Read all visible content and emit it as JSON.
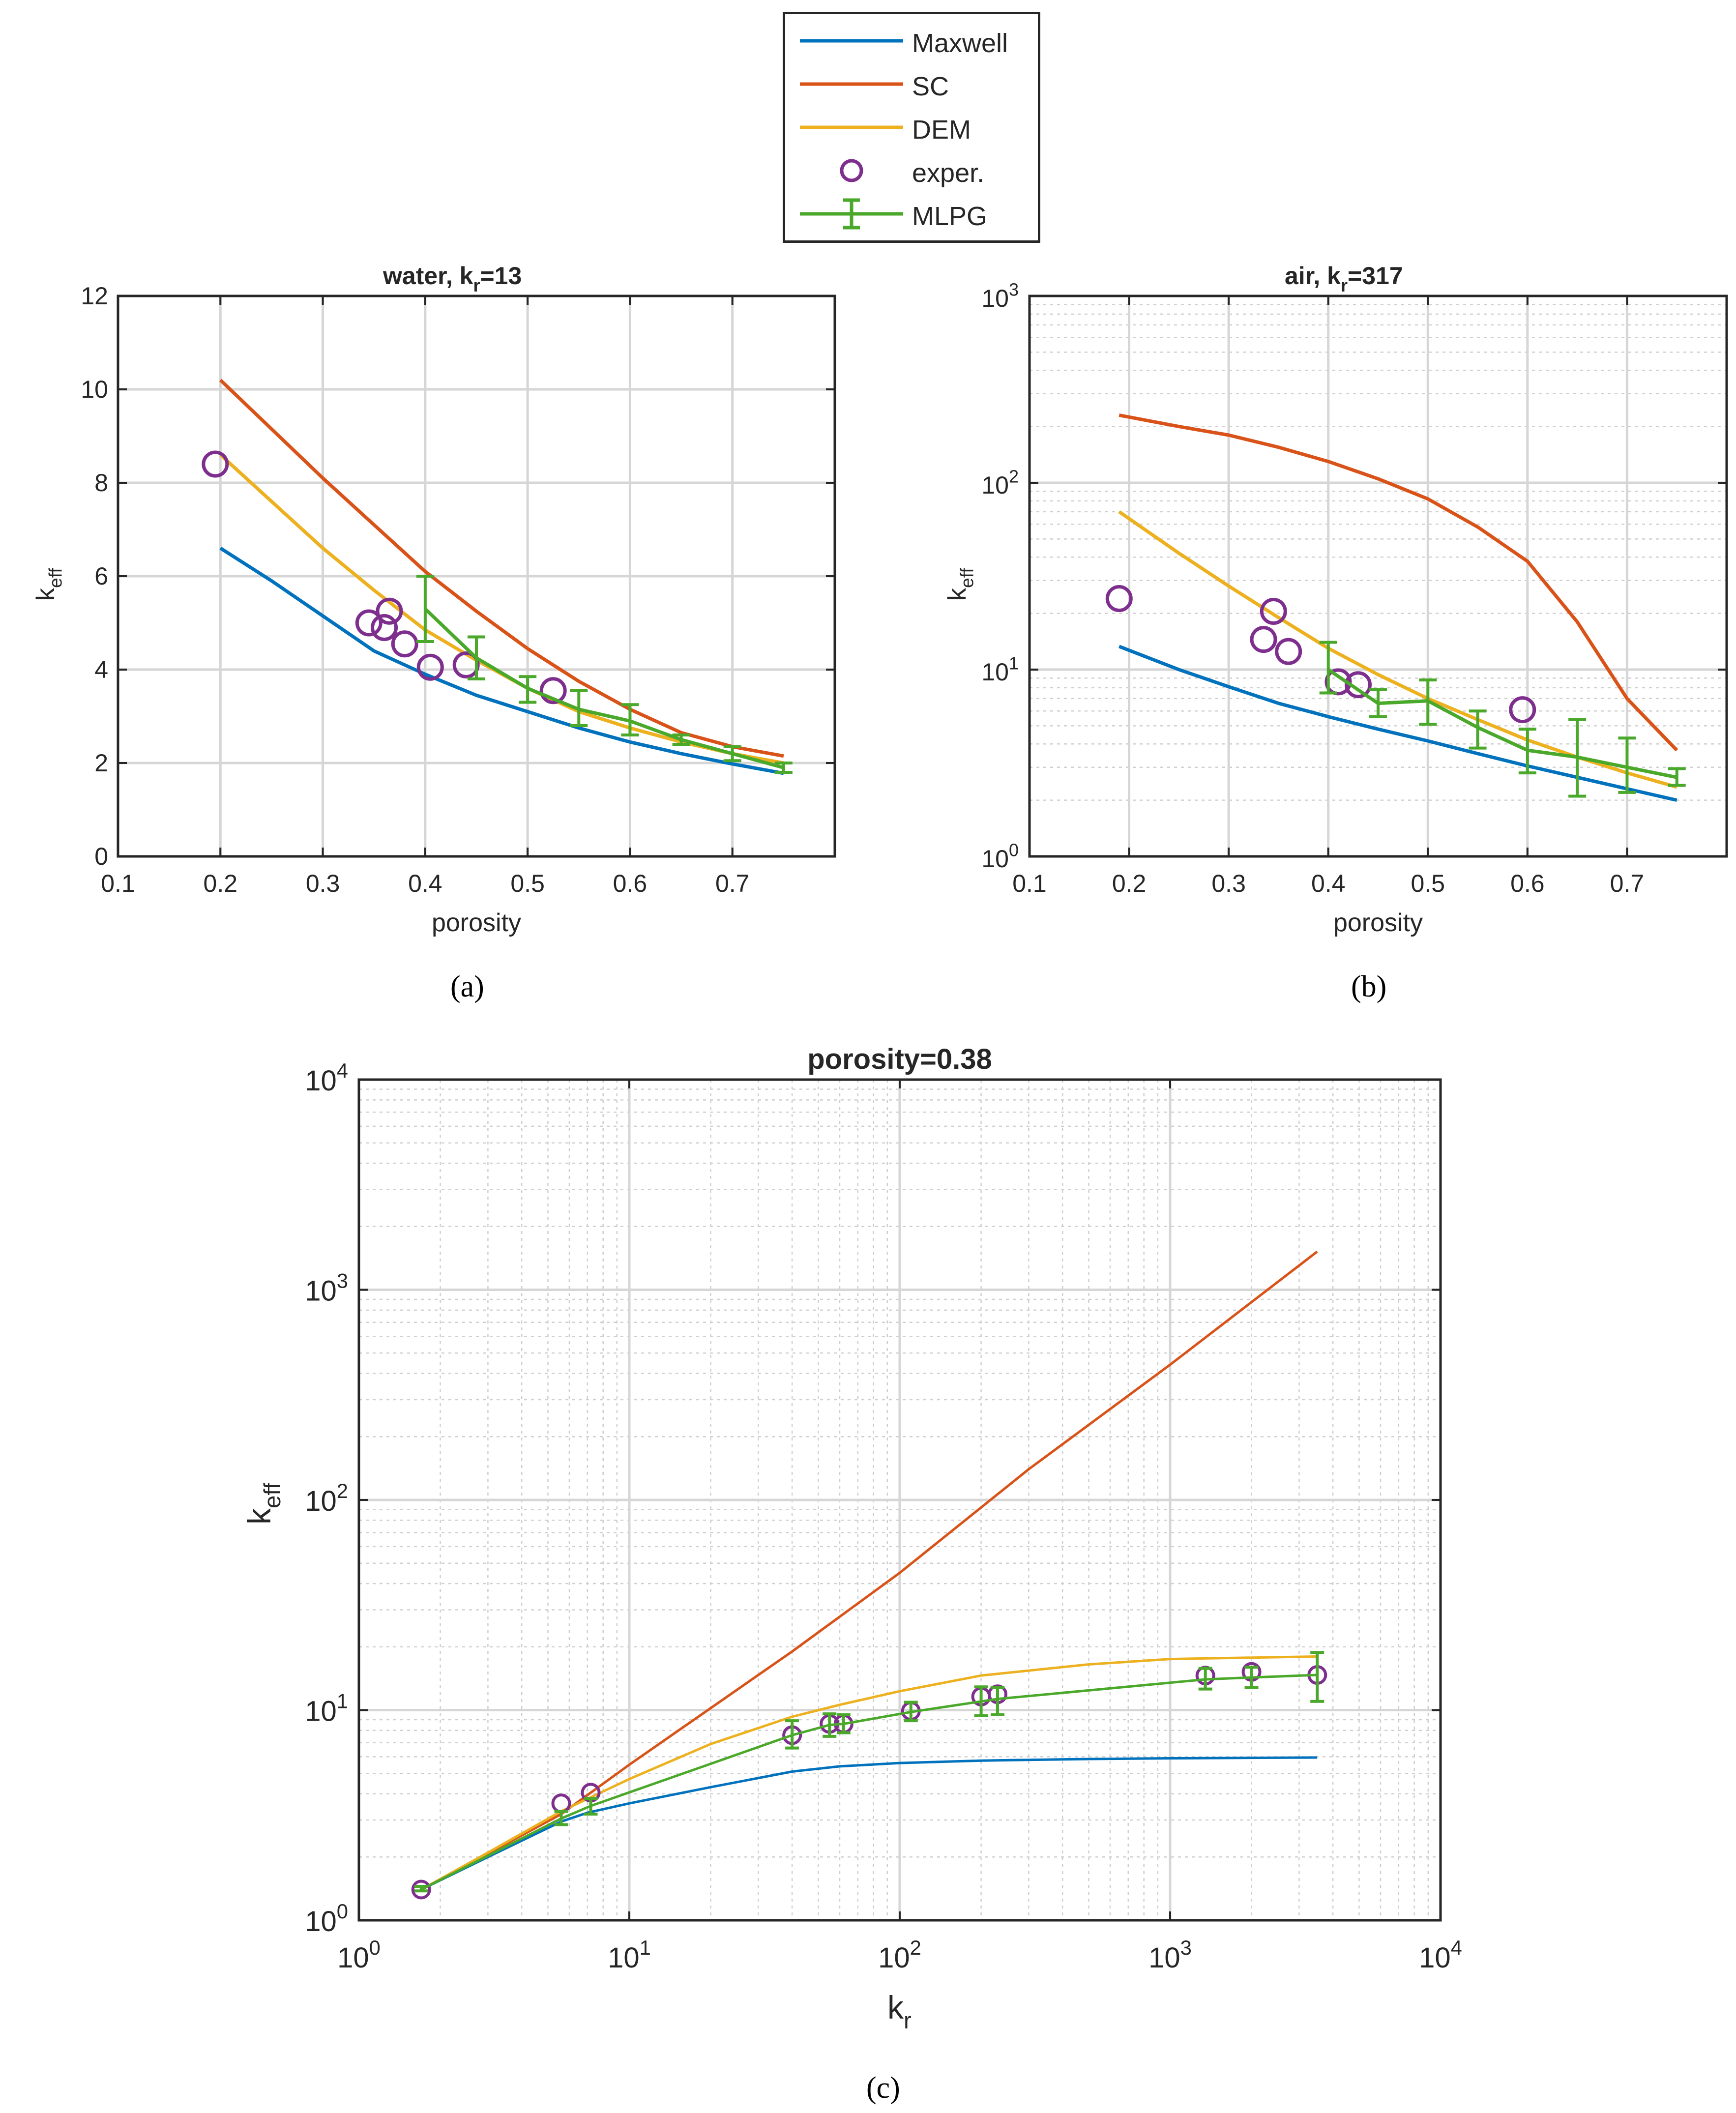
{
  "colors": {
    "maxwell": "#0072BD",
    "sc": "#D95319",
    "dem": "#EDB120",
    "exper": "#7E2F8E",
    "mlpg": "#4AA82A",
    "axis": "#262626",
    "grid": "#d6d6d6"
  },
  "legend": {
    "placement": "top-center",
    "items": [
      {
        "key": "maxwell",
        "label": "Maxwell",
        "style": "line"
      },
      {
        "key": "sc",
        "label": "SC",
        "style": "line"
      },
      {
        "key": "dem",
        "label": "DEM",
        "style": "line"
      },
      {
        "key": "exper",
        "label": "exper.",
        "style": "marker"
      },
      {
        "key": "mlpg",
        "label": "MLPG",
        "style": "errorbar"
      }
    ]
  },
  "panel_labels": {
    "a": "(a)",
    "b": "(b)",
    "c": "(c)"
  },
  "chart_data": [
    {
      "id": "a",
      "type": "line",
      "title": "water,   k_r=13",
      "title_parts": [
        "water,   k",
        "r",
        "=13"
      ],
      "xlabel": "porosity",
      "ylabel_parts": [
        "k",
        "eff"
      ],
      "xlim": [
        0.1,
        0.8
      ],
      "ylim": [
        0,
        12
      ],
      "yscale": "linear",
      "grid": true,
      "xticks": [
        0.1,
        0.2,
        0.3,
        0.4,
        0.5,
        0.6,
        0.7
      ],
      "xtick_labels": [
        "0.1",
        "0.2",
        "0.3",
        "0.4",
        "0.5",
        "0.6",
        "0.7"
      ],
      "yticks": [
        0,
        2,
        4,
        6,
        8,
        10,
        12
      ],
      "ytick_labels": [
        "0",
        "2",
        "4",
        "6",
        "8",
        "10",
        "12"
      ],
      "series": [
        {
          "key": "maxwell",
          "x": [
            0.2,
            0.25,
            0.3,
            0.35,
            0.4,
            0.45,
            0.5,
            0.55,
            0.6,
            0.65,
            0.7,
            0.75
          ],
          "y": [
            6.6,
            5.9,
            5.15,
            4.4,
            3.9,
            3.45,
            3.1,
            2.75,
            2.45,
            2.2,
            1.98,
            1.78
          ]
        },
        {
          "key": "sc",
          "x": [
            0.2,
            0.25,
            0.3,
            0.35,
            0.4,
            0.45,
            0.5,
            0.55,
            0.6,
            0.65,
            0.7,
            0.75
          ],
          "y": [
            10.2,
            9.15,
            8.1,
            7.1,
            6.1,
            5.25,
            4.45,
            3.75,
            3.15,
            2.65,
            2.35,
            2.15
          ]
        },
        {
          "key": "dem",
          "x": [
            0.2,
            0.25,
            0.3,
            0.35,
            0.4,
            0.45,
            0.5,
            0.55,
            0.6,
            0.65,
            0.7,
            0.75
          ],
          "y": [
            8.6,
            7.6,
            6.6,
            5.7,
            4.85,
            4.2,
            3.6,
            3.1,
            2.75,
            2.45,
            2.2,
            2.0
          ]
        },
        {
          "key": "exper",
          "x": [
            0.195,
            0.345,
            0.36,
            0.365,
            0.38,
            0.405,
            0.44,
            0.525
          ],
          "y": [
            8.4,
            5.0,
            4.9,
            5.25,
            4.55,
            4.05,
            4.1,
            3.55
          ]
        },
        {
          "key": "mlpg",
          "x": [
            0.4,
            0.45,
            0.5,
            0.55,
            0.6,
            0.65,
            0.7,
            0.75
          ],
          "y": [
            5.3,
            4.25,
            3.6,
            3.15,
            2.9,
            2.5,
            2.2,
            1.9
          ],
          "err_low": [
            4.6,
            3.8,
            3.3,
            2.8,
            2.6,
            2.4,
            2.05,
            1.8
          ],
          "err_high": [
            6.0,
            4.7,
            3.85,
            3.55,
            3.25,
            2.6,
            2.35,
            2.0
          ]
        }
      ]
    },
    {
      "id": "b",
      "type": "line",
      "title": "air,   k_r=317",
      "title_parts": [
        "air,   k",
        "r",
        "=317"
      ],
      "xlabel": "porosity",
      "ylabel_parts": [
        "k",
        "eff"
      ],
      "xlim": [
        0.1,
        0.8
      ],
      "ylim": [
        1,
        1000
      ],
      "yscale": "log",
      "grid": true,
      "xticks": [
        0.1,
        0.2,
        0.3,
        0.4,
        0.5,
        0.6,
        0.7
      ],
      "xtick_labels": [
        "0.1",
        "0.2",
        "0.3",
        "0.4",
        "0.5",
        "0.6",
        "0.7"
      ],
      "yticks": [
        1,
        10,
        100,
        1000
      ],
      "ytick_mantissa": [
        "10",
        "10",
        "10",
        "10"
      ],
      "ytick_exponent": [
        "0",
        "1",
        "2",
        "3"
      ],
      "series": [
        {
          "key": "maxwell",
          "x": [
            0.19,
            0.25,
            0.3,
            0.35,
            0.4,
            0.45,
            0.5,
            0.55,
            0.6,
            0.65,
            0.7,
            0.75
          ],
          "y": [
            13.3,
            10.0,
            8.1,
            6.6,
            5.6,
            4.8,
            4.15,
            3.55,
            3.05,
            2.65,
            2.3,
            2.0
          ]
        },
        {
          "key": "sc",
          "x": [
            0.19,
            0.25,
            0.3,
            0.35,
            0.4,
            0.45,
            0.5,
            0.55,
            0.6,
            0.65,
            0.7,
            0.75
          ],
          "y": [
            230,
            200,
            180,
            155,
            130,
            105,
            82,
            58,
            38,
            18,
            7,
            3.7
          ]
        },
        {
          "key": "dem",
          "x": [
            0.19,
            0.25,
            0.3,
            0.35,
            0.4,
            0.45,
            0.5,
            0.55,
            0.6,
            0.65,
            0.7,
            0.75
          ],
          "y": [
            70,
            42,
            28,
            19,
            13,
            9.4,
            7.0,
            5.4,
            4.2,
            3.4,
            2.8,
            2.35
          ]
        },
        {
          "key": "exper",
          "x": [
            0.19,
            0.335,
            0.345,
            0.36,
            0.41,
            0.43,
            0.595
          ],
          "y": [
            24,
            14.5,
            20.5,
            12.5,
            8.6,
            8.3,
            6.1
          ]
        },
        {
          "key": "mlpg",
          "x": [
            0.4,
            0.45,
            0.5,
            0.55,
            0.6,
            0.65,
            0.7,
            0.75
          ],
          "y": [
            10.0,
            6.6,
            6.8,
            4.9,
            3.7,
            3.4,
            3.0,
            2.65
          ],
          "err_low": [
            7.5,
            5.6,
            5.1,
            3.8,
            2.8,
            2.1,
            2.2,
            2.4
          ],
          "err_high": [
            14.0,
            7.8,
            8.8,
            6.0,
            4.8,
            5.4,
            4.3,
            2.95
          ]
        }
      ]
    },
    {
      "id": "c",
      "type": "line",
      "title": "porosity=0.38",
      "xlabel_parts": [
        "k",
        "r"
      ],
      "ylabel_parts": [
        "k",
        "eff"
      ],
      "xlim": [
        1,
        10000
      ],
      "ylim": [
        1,
        10000
      ],
      "xscale": "log",
      "yscale": "log",
      "grid": true,
      "xticks": [
        1,
        10,
        100,
        1000,
        10000
      ],
      "xtick_mantissa": [
        "10",
        "10",
        "10",
        "10",
        "10"
      ],
      "xtick_exponent": [
        "0",
        "1",
        "2",
        "3",
        "4"
      ],
      "yticks": [
        1,
        10,
        100,
        1000,
        10000
      ],
      "ytick_mantissa": [
        "10",
        "10",
        "10",
        "10",
        "10"
      ],
      "ytick_exponent": [
        "0",
        "1",
        "2",
        "3",
        "4"
      ],
      "series": [
        {
          "key": "maxwell",
          "x": [
            1.7,
            3,
            5.6,
            7,
            10,
            20,
            40,
            60,
            100,
            200,
            500,
            1000,
            3500
          ],
          "y": [
            1.4,
            2.0,
            2.95,
            3.25,
            3.6,
            4.3,
            5.1,
            5.4,
            5.6,
            5.75,
            5.85,
            5.9,
            5.95
          ]
        },
        {
          "key": "sc",
          "x": [
            1.7,
            5.6,
            10,
            40,
            100,
            300,
            1000,
            3500
          ],
          "y": [
            1.4,
            3.2,
            5.5,
            19,
            45,
            140,
            440,
            1520
          ]
        },
        {
          "key": "dem",
          "x": [
            1.7,
            3,
            5.6,
            10,
            20,
            40,
            60,
            100,
            200,
            500,
            1000,
            3500
          ],
          "y": [
            1.4,
            2.1,
            3.3,
            4.7,
            6.9,
            9.3,
            10.6,
            12.3,
            14.6,
            16.5,
            17.5,
            18.0
          ]
        },
        {
          "key": "exper",
          "x": [
            1.7,
            5.6,
            7.2,
            40,
            55,
            62,
            110,
            200,
            230,
            1350,
            2000,
            3500
          ],
          "y": [
            1.4,
            3.6,
            4.05,
            7.6,
            8.6,
            8.6,
            9.9,
            11.6,
            11.9,
            14.6,
            15.2,
            14.7
          ]
        },
        {
          "key": "mlpg",
          "x": [
            1.7,
            5.6,
            7.2,
            40,
            55,
            62,
            110,
            200,
            230,
            1350,
            2000,
            3500
          ],
          "y": [
            1.4,
            3.05,
            3.5,
            7.6,
            8.5,
            8.6,
            9.8,
            11.0,
            11.3,
            14.0,
            14.3,
            14.7
          ],
          "err_low": [
            1.38,
            2.85,
            3.2,
            6.6,
            7.5,
            7.8,
            8.9,
            9.4,
            9.5,
            12.6,
            12.8,
            11.0
          ],
          "err_high": [
            1.45,
            3.3,
            3.8,
            8.9,
            9.6,
            9.5,
            10.9,
            12.9,
            12.8,
            15.8,
            16.0,
            18.8
          ]
        }
      ]
    }
  ]
}
